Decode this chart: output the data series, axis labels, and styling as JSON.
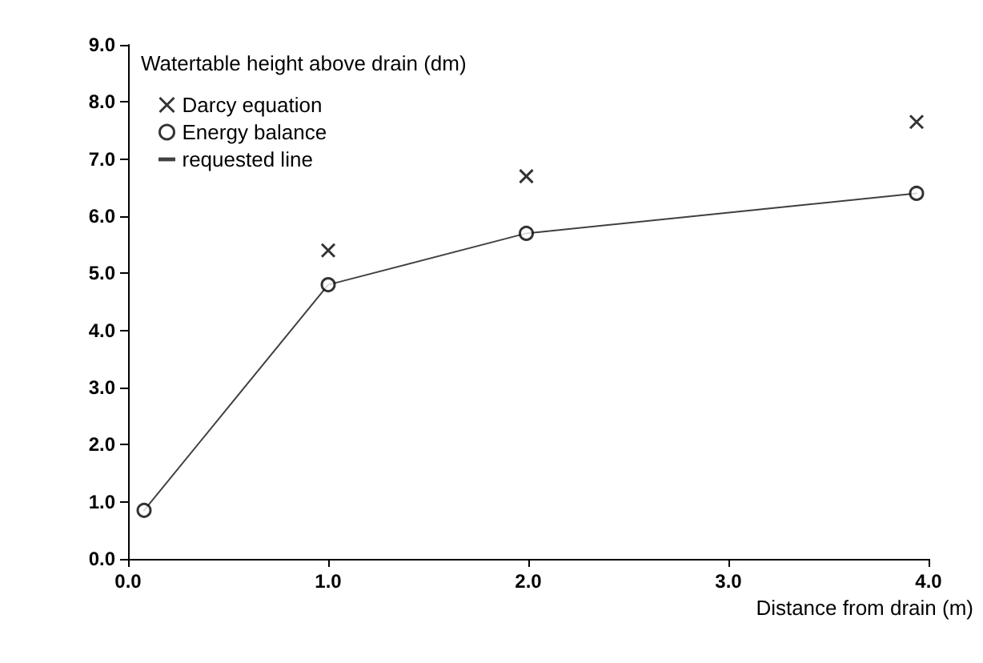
{
  "chart_data": {
    "type": "scatter",
    "ylabel": "Watertable height above drain (dm)",
    "xlabel": "Distance from drain (m)",
    "xlim": [
      0,
      4
    ],
    "xticks": [
      {
        "value": 0,
        "label": "0.0"
      },
      {
        "value": 1,
        "label": "1.0"
      },
      {
        "value": 2,
        "label": "2.0"
      },
      {
        "value": 3,
        "label": "3.0"
      },
      {
        "value": 4,
        "label": "4.0"
      }
    ],
    "ylim": [
      0,
      9
    ],
    "yticks": [
      {
        "value": 0,
        "label": "0.0"
      },
      {
        "value": 1,
        "label": "1.0"
      },
      {
        "value": 2,
        "label": "2.0"
      },
      {
        "value": 3,
        "label": "3.0"
      },
      {
        "value": 4,
        "label": "4.0"
      },
      {
        "value": 5,
        "label": "5.0"
      },
      {
        "value": 6,
        "label": "6.0"
      },
      {
        "value": 7,
        "label": "7.0"
      },
      {
        "value": 8,
        "label": "8.0"
      },
      {
        "value": 9,
        "label": "9.0"
      }
    ],
    "grid": false,
    "legend": "top left",
    "series": [
      {
        "name": "Darcy equation",
        "marker": "cross",
        "color": "#000000",
        "x": [
          1.0,
          1.99,
          3.94
        ],
        "values": [
          5.4,
          6.7,
          7.65
        ]
      },
      {
        "name": "Energy balance",
        "marker": "circle",
        "color": "#000000",
        "x": [
          0.08,
          1.0,
          1.99,
          3.94
        ],
        "values": [
          0.85,
          4.8,
          5.7,
          6.4
        ]
      },
      {
        "name": "requested line",
        "type": "line",
        "marker": "none",
        "line_style": "solid",
        "color": "#404040",
        "x": [
          0.08,
          1.0,
          1.99,
          3.94
        ],
        "values": [
          0.85,
          4.8,
          5.7,
          6.4
        ]
      }
    ]
  }
}
